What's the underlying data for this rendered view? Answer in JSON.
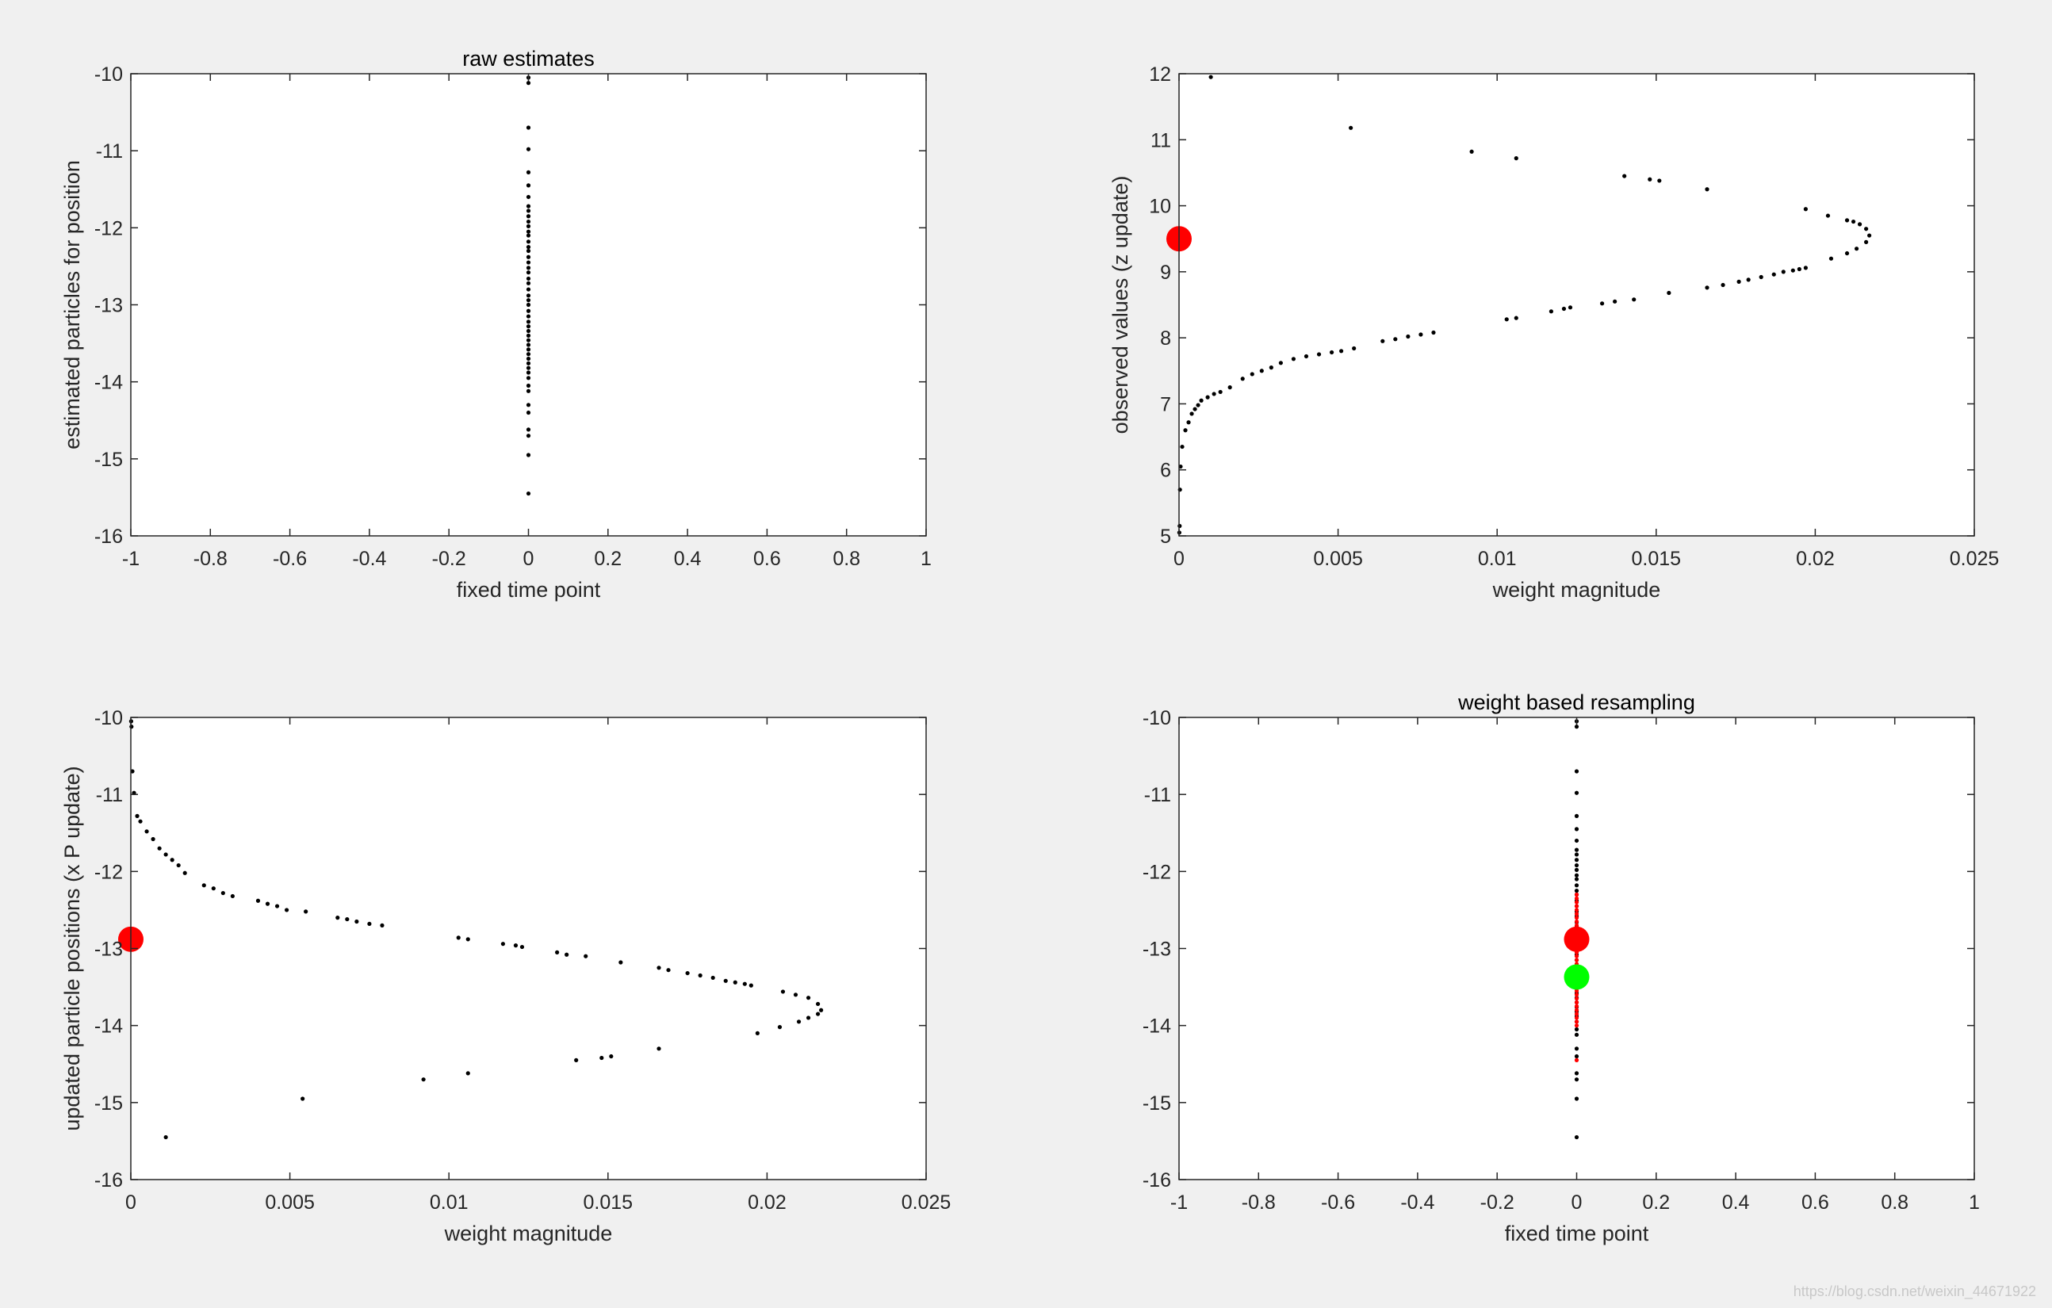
{
  "watermark": "https://blog.csdn.net/weixin_44671922",
  "chart_data": [
    {
      "type": "scatter",
      "title": "raw estimates",
      "xlabel": "fixed time point",
      "ylabel": "estimated particles for  position",
      "xlim": [
        -1,
        1
      ],
      "ylim": [
        -16,
        -10
      ],
      "xticks": [
        -1,
        -0.8,
        -0.6,
        -0.4,
        -0.2,
        0,
        0.2,
        0.4,
        0.6,
        0.8,
        1
      ],
      "yticks": [
        -16,
        -15,
        -14,
        -13,
        -12,
        -11,
        -10
      ],
      "xtick_labels": [
        "-1",
        "-0.8",
        "-0.6",
        "-0.4",
        "-0.2",
        "0",
        "0.2",
        "0.4",
        "0.6",
        "0.8",
        "1"
      ],
      "ytick_labels": [
        "-16",
        "-15",
        "-14",
        "-13",
        "-12",
        "-11",
        "-10"
      ],
      "grid": false,
      "series": [
        {
          "color": "#000000",
          "marker": "dot",
          "x": [
            0,
            0,
            0,
            0,
            0,
            0,
            0,
            0,
            0,
            0,
            0,
            0,
            0,
            0,
            0,
            0,
            0,
            0,
            0,
            0,
            0,
            0,
            0,
            0,
            0,
            0,
            0,
            0,
            0,
            0,
            0,
            0,
            0,
            0,
            0,
            0,
            0,
            0,
            0,
            0,
            0,
            0,
            0,
            0,
            0,
            0,
            0,
            0,
            0,
            0
          ],
          "y": [
            -10.05,
            -10.12,
            -10.7,
            -10.98,
            -11.28,
            -11.45,
            -11.6,
            -11.72,
            -11.78,
            -11.85,
            -11.92,
            -11.98,
            -12.05,
            -12.1,
            -12.18,
            -12.25,
            -12.3,
            -12.38,
            -12.45,
            -12.52,
            -12.58,
            -12.66,
            -12.72,
            -12.8,
            -12.88,
            -12.94,
            -13.0,
            -13.08,
            -13.15,
            -13.22,
            -13.28,
            -13.34,
            -13.4,
            -13.46,
            -13.52,
            -13.58,
            -13.64,
            -13.7,
            -13.76,
            -13.82,
            -13.88,
            -13.95,
            -14.05,
            -14.12,
            -14.3,
            -14.4,
            -14.62,
            -14.7,
            -14.95,
            -15.45
          ]
        }
      ]
    },
    {
      "type": "scatter",
      "title": "",
      "xlabel": "weight magnitude",
      "ylabel": "observed values (z update)",
      "xlim": [
        0,
        0.025
      ],
      "ylim": [
        5,
        12
      ],
      "xticks": [
        0,
        0.005,
        0.01,
        0.015,
        0.02,
        0.025
      ],
      "yticks": [
        5,
        6,
        7,
        8,
        9,
        10,
        11,
        12
      ],
      "xtick_labels": [
        "0",
        "0.005",
        "0.01",
        "0.015",
        "0.02",
        "0.025"
      ],
      "ytick_labels": [
        "5",
        "6",
        "7",
        "8",
        "9",
        "10",
        "11",
        "12"
      ],
      "grid": false,
      "series": [
        {
          "color": "#000000",
          "marker": "dot",
          "x": [
            1e-05,
            2e-05,
            3e-05,
            5e-05,
            0.0001,
            0.0002,
            0.0003,
            0.0004,
            0.0005,
            0.0006,
            0.0007,
            0.0009,
            0.0011,
            0.0013,
            0.0016,
            0.002,
            0.0023,
            0.0026,
            0.0029,
            0.0032,
            0.0036,
            0.004,
            0.0044,
            0.0048,
            0.0051,
            0.0055,
            0.0064,
            0.0068,
            0.0072,
            0.0076,
            0.008,
            0.0103,
            0.0106,
            0.0117,
            0.0121,
            0.0123,
            0.0133,
            0.0137,
            0.0143,
            0.0154,
            0.0166,
            0.0171,
            0.0176,
            0.0179,
            0.0183,
            0.0187,
            0.019,
            0.0193,
            0.0195,
            0.0197,
            0.0205,
            0.021,
            0.0213,
            0.0216,
            0.0217,
            0.0216,
            0.0214,
            0.0212,
            0.021,
            0.0204,
            0.0197,
            0.0166,
            0.0151,
            0.0148,
            0.014,
            0.0106,
            0.0092,
            0.0054,
            0.001
          ],
          "y": [
            5.05,
            5.15,
            5.7,
            6.05,
            6.35,
            6.6,
            6.72,
            6.85,
            6.92,
            6.98,
            7.05,
            7.1,
            7.15,
            7.18,
            7.25,
            7.38,
            7.45,
            7.5,
            7.55,
            7.62,
            7.68,
            7.72,
            7.75,
            7.78,
            7.8,
            7.84,
            7.95,
            7.98,
            8.02,
            8.05,
            8.08,
            8.28,
            8.3,
            8.4,
            8.44,
            8.46,
            8.52,
            8.55,
            8.58,
            8.68,
            8.76,
            8.8,
            8.85,
            8.88,
            8.92,
            8.96,
            9.0,
            9.02,
            9.04,
            9.06,
            9.2,
            9.28,
            9.35,
            9.45,
            9.55,
            9.65,
            9.72,
            9.76,
            9.78,
            9.85,
            9.95,
            10.25,
            10.38,
            10.4,
            10.45,
            10.72,
            10.82,
            11.18,
            11.95
          ]
        },
        {
          "color": "#ff0000",
          "marker": "large-circle",
          "x": [
            0
          ],
          "y": [
            9.5
          ]
        }
      ]
    },
    {
      "type": "scatter",
      "title": "",
      "xlabel": "weight magnitude",
      "ylabel": "updated particle positions (x P update)",
      "xlim": [
        0,
        0.025
      ],
      "ylim": [
        -16,
        -10
      ],
      "xticks": [
        0,
        0.005,
        0.01,
        0.015,
        0.02,
        0.025
      ],
      "yticks": [
        -16,
        -15,
        -14,
        -13,
        -12,
        -11,
        -10
      ],
      "xtick_labels": [
        "0",
        "0.005",
        "0.01",
        "0.015",
        "0.02",
        "0.025"
      ],
      "ytick_labels": [
        "-16",
        "-15",
        "-14",
        "-13",
        "-12",
        "-11",
        "-10"
      ],
      "grid": false,
      "series": [
        {
          "color": "#000000",
          "marker": "dot",
          "x": [
            1e-05,
            2e-05,
            5e-05,
            0.0001,
            0.0002,
            0.0003,
            0.0005,
            0.0007,
            0.0009,
            0.0011,
            0.0013,
            0.0015,
            0.0017,
            0.0023,
            0.0026,
            0.0029,
            0.0032,
            0.004,
            0.0043,
            0.0046,
            0.0049,
            0.0055,
            0.0065,
            0.0068,
            0.0071,
            0.0075,
            0.0079,
            0.0103,
            0.0106,
            0.0117,
            0.0121,
            0.0123,
            0.0134,
            0.0137,
            0.0143,
            0.0154,
            0.0166,
            0.0169,
            0.0175,
            0.0179,
            0.0183,
            0.0187,
            0.019,
            0.0193,
            0.0195,
            0.0205,
            0.0209,
            0.0213,
            0.0216,
            0.0217,
            0.0216,
            0.0213,
            0.021,
            0.0204,
            0.0197,
            0.0166,
            0.0151,
            0.0148,
            0.014,
            0.0106,
            0.0092,
            0.0054,
            0.0011
          ],
          "y": [
            -10.05,
            -10.12,
            -10.7,
            -10.98,
            -11.28,
            -11.35,
            -11.48,
            -11.58,
            -11.7,
            -11.78,
            -11.85,
            -11.92,
            -12.02,
            -12.18,
            -12.22,
            -12.28,
            -12.32,
            -12.38,
            -12.42,
            -12.45,
            -12.5,
            -12.52,
            -12.6,
            -12.62,
            -12.65,
            -12.68,
            -12.7,
            -12.86,
            -12.88,
            -12.94,
            -12.96,
            -12.98,
            -13.05,
            -13.08,
            -13.1,
            -13.18,
            -13.25,
            -13.28,
            -13.32,
            -13.35,
            -13.38,
            -13.42,
            -13.44,
            -13.46,
            -13.48,
            -13.56,
            -13.6,
            -13.64,
            -13.72,
            -13.8,
            -13.85,
            -13.9,
            -13.95,
            -14.02,
            -14.1,
            -14.3,
            -14.4,
            -14.42,
            -14.45,
            -14.62,
            -14.7,
            -14.95,
            -15.45
          ]
        },
        {
          "color": "#ff0000",
          "marker": "large-circle",
          "x": [
            0
          ],
          "y": [
            -12.88
          ]
        }
      ]
    },
    {
      "type": "scatter",
      "title": "weight based resampling",
      "xlabel": "fixed  time point",
      "ylabel": "",
      "xlim": [
        -1,
        1
      ],
      "ylim": [
        -16,
        -10
      ],
      "xticks": [
        -1,
        -0.8,
        -0.6,
        -0.4,
        -0.2,
        0,
        0.2,
        0.4,
        0.6,
        0.8,
        1
      ],
      "yticks": [
        -16,
        -15,
        -14,
        -13,
        -12,
        -11,
        -10
      ],
      "xtick_labels": [
        "-1",
        "-0.8",
        "-0.6",
        "-0.4",
        "-0.2",
        "0",
        "0.2",
        "0.4",
        "0.6",
        "0.8",
        "1"
      ],
      "ytick_labels": [
        "-16",
        "-15",
        "-14",
        "-13",
        "-12",
        "-11",
        "-10"
      ],
      "grid": false,
      "series": [
        {
          "color": "#000000",
          "marker": "dot",
          "x": [
            0,
            0,
            0,
            0,
            0,
            0,
            0,
            0,
            0,
            0,
            0,
            0,
            0,
            0,
            0,
            0,
            0,
            0,
            0,
            0,
            0,
            0,
            0,
            0,
            0,
            0,
            0,
            0,
            0,
            0,
            0,
            0,
            0,
            0,
            0,
            0,
            0,
            0,
            0,
            0,
            0,
            0,
            0,
            0,
            0,
            0,
            0,
            0,
            0,
            0
          ],
          "y": [
            -10.05,
            -10.12,
            -10.7,
            -10.98,
            -11.28,
            -11.45,
            -11.6,
            -11.72,
            -11.78,
            -11.85,
            -11.92,
            -11.98,
            -12.05,
            -12.1,
            -12.18,
            -12.25,
            -12.3,
            -12.38,
            -12.45,
            -12.52,
            -12.58,
            -12.66,
            -12.72,
            -12.8,
            -12.88,
            -12.94,
            -13.0,
            -13.08,
            -13.15,
            -13.22,
            -13.28,
            -13.34,
            -13.4,
            -13.46,
            -13.52,
            -13.58,
            -13.64,
            -13.7,
            -13.76,
            -13.82,
            -13.88,
            -13.95,
            -14.05,
            -14.12,
            -14.3,
            -14.4,
            -14.62,
            -14.7,
            -14.95,
            -15.45
          ]
        },
        {
          "color": "#ff0000",
          "marker": "dot",
          "x": [
            0,
            0,
            0,
            0,
            0,
            0,
            0,
            0,
            0,
            0,
            0,
            0,
            0,
            0,
            0,
            0,
            0,
            0,
            0,
            0,
            0,
            0,
            0,
            0,
            0,
            0,
            0,
            0,
            0,
            0,
            0,
            0,
            0,
            0,
            0,
            0
          ],
          "y": [
            -12.3,
            -12.35,
            -12.4,
            -12.45,
            -12.5,
            -12.55,
            -12.6,
            -12.65,
            -12.7,
            -12.75,
            -12.8,
            -12.85,
            -12.9,
            -12.95,
            -13.0,
            -13.05,
            -13.1,
            -13.15,
            -13.2,
            -13.25,
            -13.3,
            -13.35,
            -13.4,
            -13.45,
            -13.5,
            -13.55,
            -13.6,
            -13.65,
            -13.7,
            -13.75,
            -13.8,
            -13.85,
            -13.9,
            -13.95,
            -14.0,
            -14.45
          ]
        },
        {
          "color": "#ff0000",
          "marker": "large-circle",
          "x": [
            0
          ],
          "y": [
            -12.88
          ]
        },
        {
          "color": "#00ff00",
          "marker": "large-circle",
          "x": [
            0
          ],
          "y": [
            -13.37
          ]
        }
      ]
    }
  ]
}
